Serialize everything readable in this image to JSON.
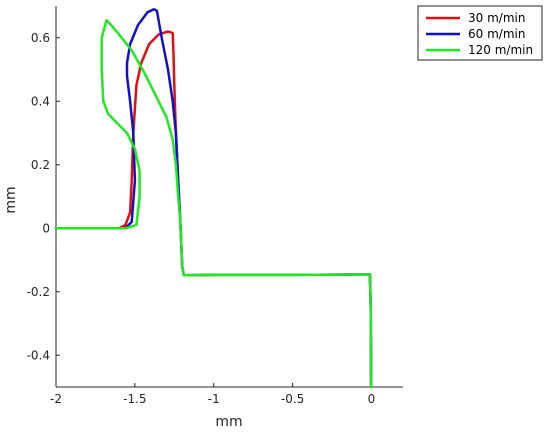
{
  "chart_data": {
    "type": "line",
    "title": "",
    "xlabel": "mm",
    "ylabel": "mm",
    "xlim": [
      -2,
      0.2
    ],
    "ylim": [
      -0.5,
      0.7
    ],
    "xticks": [
      -2,
      -1.5,
      -1,
      -0.5,
      0
    ],
    "xtick_labels": [
      "-2",
      "-1.5",
      "-1",
      "-0.5",
      "0"
    ],
    "yticks": [
      -0.4,
      -0.2,
      0,
      0.2,
      0.4,
      0.6
    ],
    "ytick_labels": [
      "-0.4",
      "-0.2",
      "0",
      "0.2",
      "0.4",
      "0.6"
    ],
    "grid": false,
    "legend_position": "top-right",
    "series": [
      {
        "name": "30 m/min",
        "color": "#e01010",
        "x": [
          -2.0,
          -1.7,
          -1.6,
          -1.56,
          -1.53,
          -1.52,
          -1.51,
          -1.49,
          -1.46,
          -1.41,
          -1.35,
          -1.29,
          -1.26,
          -1.255,
          -1.25,
          -1.24,
          -1.225,
          -1.215,
          -1.21,
          -1.205,
          -1.2,
          -1.19,
          -1.0,
          -0.5,
          -0.2,
          -0.01,
          -0.005,
          -0.003,
          -0.002
        ],
        "y": [
          0.0,
          0.0,
          0.0,
          0.01,
          0.05,
          0.15,
          0.3,
          0.45,
          0.52,
          0.58,
          0.61,
          0.62,
          0.615,
          0.55,
          0.45,
          0.3,
          0.15,
          0.05,
          0.0,
          -0.06,
          -0.12,
          -0.148,
          -0.147,
          -0.147,
          -0.146,
          -0.145,
          -0.25,
          -0.4,
          -0.5
        ]
      },
      {
        "name": "60 m/min",
        "color": "#1010c8",
        "x": [
          -2.0,
          -1.7,
          -1.56,
          -1.52,
          -1.5,
          -1.51,
          -1.53,
          -1.55,
          -1.55,
          -1.53,
          -1.48,
          -1.42,
          -1.38,
          -1.36,
          -1.33,
          -1.29,
          -1.26,
          -1.24,
          -1.225,
          -1.215,
          -1.21,
          -1.205,
          -1.2,
          -1.19,
          -1.0,
          -0.5,
          -0.2,
          -0.01,
          -0.005,
          -0.003,
          -0.002
        ],
        "y": [
          0.0,
          0.0,
          0.0,
          0.02,
          0.15,
          0.3,
          0.4,
          0.48,
          0.52,
          0.58,
          0.64,
          0.68,
          0.69,
          0.685,
          0.6,
          0.5,
          0.4,
          0.3,
          0.15,
          0.05,
          0.0,
          -0.06,
          -0.12,
          -0.148,
          -0.147,
          -0.147,
          -0.146,
          -0.145,
          -0.25,
          -0.4,
          -0.5
        ]
      },
      {
        "name": "120 m/min",
        "color": "#22e822",
        "x": [
          -2.0,
          -1.7,
          -1.56,
          -1.49,
          -1.47,
          -1.47,
          -1.5,
          -1.55,
          -1.61,
          -1.67,
          -1.7,
          -1.71,
          -1.71,
          -1.68,
          -1.65,
          -1.6,
          -1.52,
          -1.44,
          -1.37,
          -1.3,
          -1.26,
          -1.24,
          -1.225,
          -1.215,
          -1.21,
          -1.205,
          -1.2,
          -1.19,
          -1.0,
          -0.5,
          -0.2,
          -0.01,
          -0.005,
          -0.003,
          -0.002
        ],
        "y": [
          0.0,
          0.0,
          0.0,
          0.01,
          0.1,
          0.18,
          0.25,
          0.3,
          0.33,
          0.36,
          0.4,
          0.5,
          0.6,
          0.655,
          0.64,
          0.61,
          0.56,
          0.49,
          0.42,
          0.35,
          0.28,
          0.2,
          0.1,
          0.04,
          0.0,
          -0.06,
          -0.12,
          -0.148,
          -0.147,
          -0.147,
          -0.146,
          -0.145,
          -0.25,
          -0.4,
          -0.5
        ]
      }
    ]
  }
}
